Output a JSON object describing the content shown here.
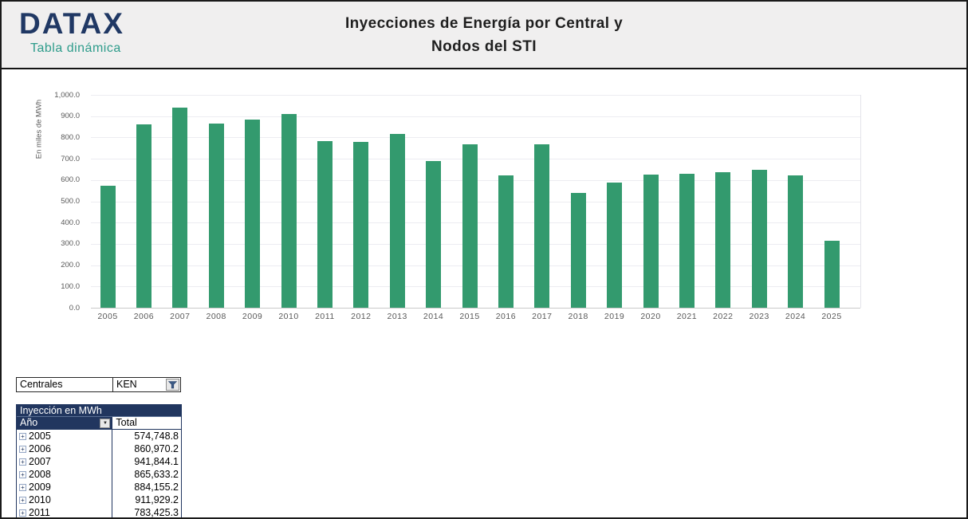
{
  "header": {
    "logo": "DATAX",
    "logo_sub": "Tabla dinámica",
    "title_line1": "Inyecciones de Energía por Central y",
    "title_line2": "Nodos del STI"
  },
  "chart_data": {
    "type": "bar",
    "title": "Inyecciones de Energía por Central y Nodos del STI",
    "xlabel": "",
    "ylabel": "En miles de MWh",
    "categories": [
      "2005",
      "2006",
      "2007",
      "2008",
      "2009",
      "2010",
      "2011",
      "2012",
      "2013",
      "2014",
      "2015",
      "2016",
      "2017",
      "2018",
      "2019",
      "2020",
      "2021",
      "2022",
      "2023",
      "2024",
      "2025"
    ],
    "values": [
      574.7,
      861.0,
      941.8,
      865.6,
      884.2,
      911.9,
      783.4,
      777.5,
      816.5,
      691.0,
      766.5,
      620.0,
      767.0,
      538.5,
      589.5,
      624.5,
      631.0,
      638.0,
      649.5,
      622.0,
      315.5
    ],
    "unit": "miles de MWh",
    "ylim": [
      0,
      1000
    ],
    "ytick_step": 100,
    "grid": true,
    "legend": false,
    "bar_color": "#339a6e",
    "axis_text_color": "#595959"
  },
  "filter": {
    "label": "Centrales",
    "value": "KEN",
    "dropdown_icon": "funnel-icon"
  },
  "pivot": {
    "title": "Inyección en MWh",
    "row_header": "Año",
    "value_header": "Total",
    "dropdown_icon": "chevron-down-icon",
    "expand_icon": "plus-box-icon",
    "expand_glyph": "+",
    "dropdown_glyph": "▼",
    "rows": [
      {
        "year": "2005",
        "total": "574,748.8"
      },
      {
        "year": "2006",
        "total": "860,970.2"
      },
      {
        "year": "2007",
        "total": "941,844.1"
      },
      {
        "year": "2008",
        "total": "865,633.2"
      },
      {
        "year": "2009",
        "total": "884,155.2"
      },
      {
        "year": "2010",
        "total": "911,929.2"
      },
      {
        "year": "2011",
        "total": "783,425.3"
      }
    ]
  },
  "colors": {
    "bar_green": "#339a6e",
    "navy": "#21365f",
    "teal": "#2e9c8b",
    "header_bg": "#f0efef",
    "gridline": "#ececf1"
  }
}
